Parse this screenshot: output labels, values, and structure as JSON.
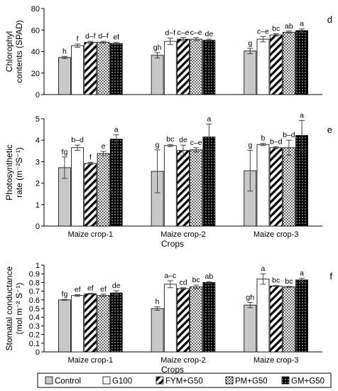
{
  "crops": [
    "Maize crop-1",
    "Maize crop-2",
    "Maize crop-3"
  ],
  "treatments": [
    "Control",
    "G100",
    "FYM+G50",
    "PM+G50",
    "GM+G50"
  ],
  "x_axis_label": "Crops",
  "legend_position": "bottom",
  "chart_data": [
    {
      "type": "bar",
      "panel_letter": "d",
      "ylabel_lines": [
        "Chlorophyl",
        "contents (SPAD)"
      ],
      "ylim": [
        0,
        80
      ],
      "yticks": [
        0,
        20,
        40,
        60,
        80
      ],
      "y_tick_labels": [
        "0",
        "20",
        "40",
        "60",
        "80"
      ],
      "grid": false,
      "show_category_labels": false,
      "show_xlabel": false,
      "categories": [
        "Maize crop-1",
        "Maize crop-2",
        "Maize crop-3"
      ],
      "series": [
        {
          "name": "Control",
          "values": [
            34.5,
            36.5,
            40.5
          ],
          "errors": [
            1.0,
            2.5,
            2.5
          ],
          "letters": [
            "h",
            "gh",
            "g"
          ]
        },
        {
          "name": "G100",
          "values": [
            45.5,
            49.5,
            51.5
          ],
          "errors": [
            1.5,
            3.0,
            2.5
          ],
          "letters": [
            "f",
            "d–f",
            "c–e"
          ]
        },
        {
          "name": "FYM+G50",
          "values": [
            48.5,
            51.5,
            55.5
          ],
          "errors": [
            1.0,
            1.5,
            1.0
          ],
          "letters": [
            "d–f",
            "c–e",
            "bc"
          ]
        },
        {
          "name": "PM+G50",
          "values": [
            48.5,
            51.5,
            58.0
          ],
          "errors": [
            1.0,
            1.5,
            1.0
          ],
          "letters": [
            "d–f",
            "c–e",
            "ab"
          ]
        },
        {
          "name": "GM+G50",
          "values": [
            47.5,
            50.5,
            59.5
          ],
          "errors": [
            1.0,
            1.0,
            1.5
          ],
          "letters": [
            "ef",
            "de",
            "a"
          ]
        }
      ]
    },
    {
      "type": "bar",
      "panel_letter": "e",
      "ylabel_lines": [
        "Photosynthetic",
        "rate (m⁻²S⁻¹)"
      ],
      "ylim": [
        0,
        5
      ],
      "yticks": [
        0,
        1,
        2,
        3,
        4,
        5
      ],
      "y_tick_labels": [
        "0",
        "1",
        "2",
        "3",
        "4",
        "5"
      ],
      "grid": false,
      "show_category_labels": true,
      "show_xlabel": true,
      "categories": [
        "Maize crop-1",
        "Maize crop-2",
        "Maize crop-3"
      ],
      "series": [
        {
          "name": "Control",
          "values": [
            2.72,
            2.55,
            2.58
          ],
          "errors": [
            0.5,
            1.0,
            0.95
          ],
          "letters": [
            "fg",
            "g",
            "g"
          ]
        },
        {
          "name": "G100",
          "values": [
            3.65,
            3.75,
            3.8
          ],
          "errors": [
            0.12,
            0.05,
            0.05
          ],
          "letters": [
            "b–d",
            "bc",
            "b"
          ]
        },
        {
          "name": "FYM+G50",
          "values": [
            2.92,
            3.52,
            3.65
          ],
          "errors": [
            0.05,
            0.25,
            0.05
          ],
          "letters": [
            "f",
            "de",
            "b–d"
          ]
        },
        {
          "name": "PM+G50",
          "values": [
            3.38,
            3.55,
            3.65
          ],
          "errors": [
            0.1,
            0.1,
            0.35
          ],
          "letters": [
            "e",
            "c–e",
            "b–d"
          ]
        },
        {
          "name": "GM+G50",
          "values": [
            4.05,
            4.15,
            4.22
          ],
          "errors": [
            0.2,
            0.6,
            0.7
          ],
          "letters": [
            "a",
            "a",
            "a"
          ]
        }
      ]
    },
    {
      "type": "bar",
      "panel_letter": "f",
      "ylabel_lines": [
        "Stomatal conductance",
        "(mol m⁻² S⁻¹)"
      ],
      "ylim": [
        0,
        1
      ],
      "yticks": [
        0,
        0.1,
        0.2,
        0.3,
        0.4,
        0.5,
        0.6,
        0.7,
        0.8,
        0.9,
        1
      ],
      "y_tick_labels": [
        "0",
        "0.1",
        "0.2",
        "0.3",
        "0.4",
        "0.5",
        "0.6",
        "0.7",
        "0.8",
        "0.9",
        "1"
      ],
      "grid": false,
      "show_category_labels": true,
      "show_xlabel": true,
      "categories": [
        "Maize crop-1",
        "Maize crop-2",
        "Maize crop-3"
      ],
      "series": [
        {
          "name": "Control",
          "values": [
            0.6,
            0.5,
            0.54
          ],
          "errors": [
            0.005,
            0.02,
            0.03
          ],
          "letters": [
            "fg",
            "h",
            "gh"
          ]
        },
        {
          "name": "G100",
          "values": [
            0.65,
            0.78,
            0.84
          ],
          "errors": [
            0.01,
            0.04,
            0.06
          ],
          "letters": [
            "ef",
            "a–c",
            "a"
          ]
        },
        {
          "name": "FYM+G50",
          "values": [
            0.67,
            0.73,
            0.76
          ],
          "errors": [
            0.005,
            0.01,
            0.005
          ],
          "letters": [
            "ef",
            "cd",
            "bc"
          ]
        },
        {
          "name": "PM+G50",
          "values": [
            0.65,
            0.75,
            0.75
          ],
          "errors": [
            0.015,
            0.02,
            0.005
          ],
          "letters": [
            "ef",
            "bc",
            "bc"
          ]
        },
        {
          "name": "GM+G50",
          "values": [
            0.68,
            0.8,
            0.83
          ],
          "errors": [
            0.025,
            0.01,
            0.02
          ],
          "letters": [
            "de",
            "ab",
            "a"
          ]
        }
      ]
    }
  ]
}
